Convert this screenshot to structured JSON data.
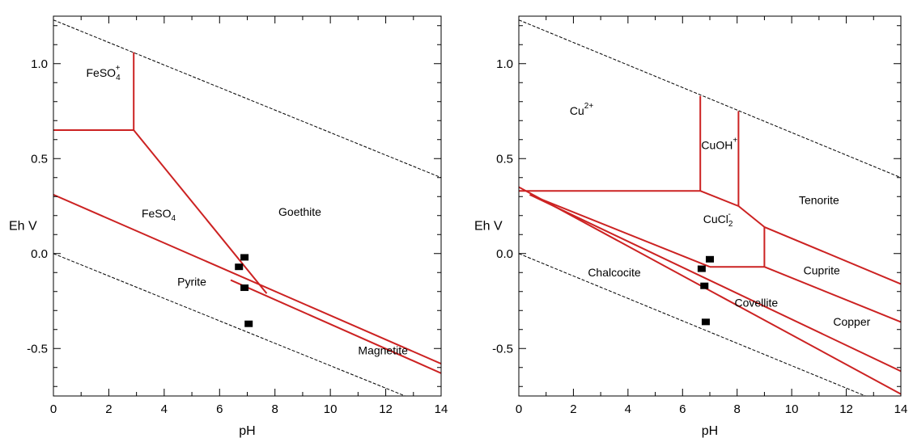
{
  "chart_data": [
    {
      "type": "line",
      "title": "",
      "xlabel": "pH",
      "ylabel": "Eh V",
      "xlim": [
        0,
        14
      ],
      "ylim": [
        -0.75,
        1.25
      ],
      "xticks": [
        0,
        2,
        4,
        6,
        8,
        10,
        12,
        14
      ],
      "xtick_labels": [
        "0",
        "2",
        "4",
        "6",
        "8",
        "10",
        "12",
        "14"
      ],
      "yticks": [
        -0.5,
        0.0,
        0.5,
        1.0
      ],
      "ytick_labels": [
        "-0.5",
        "0.0",
        "0.5",
        "1.0"
      ],
      "grid": false,
      "boundary_color": "#cc2222",
      "series": [
        {
          "style": "dashed",
          "points": [
            [
              0,
              1.23
            ],
            [
              14,
              0.4
            ]
          ]
        },
        {
          "style": "dashed",
          "points": [
            [
              0,
              0.0
            ],
            [
              12.7,
              -0.75
            ]
          ]
        },
        {
          "style": "solid",
          "points": [
            [
              0,
              0.65
            ],
            [
              2.9,
              0.65
            ]
          ]
        },
        {
          "style": "solid",
          "points": [
            [
              2.9,
              0.65
            ],
            [
              2.9,
              1.06
            ]
          ]
        },
        {
          "style": "solid",
          "points": [
            [
              2.9,
              0.65
            ],
            [
              7.7,
              -0.21
            ]
          ]
        },
        {
          "style": "solid",
          "points": [
            [
              0,
              0.31
            ],
            [
              14,
              -0.58
            ]
          ]
        },
        {
          "style": "solid",
          "points": [
            [
              6.4,
              -0.14
            ],
            [
              14,
              -0.63
            ]
          ]
        }
      ],
      "markers": [
        [
          6.9,
          -0.02
        ],
        [
          6.7,
          -0.07
        ],
        [
          6.9,
          -0.18
        ],
        [
          7.05,
          -0.37
        ]
      ],
      "annotations": [
        {
          "text": "FeSO",
          "sub": "4",
          "sup": "+",
          "x": 1.8,
          "y": 0.93
        },
        {
          "text": "FeSO",
          "sub": "4",
          "sup": "",
          "x": 3.8,
          "y": 0.19
        },
        {
          "text": "Goethite",
          "x": 8.9,
          "y": 0.2
        },
        {
          "text": "Pyrite",
          "x": 5.0,
          "y": -0.17
        },
        {
          "text": "Magnetite",
          "x": 11.9,
          "y": -0.53
        }
      ]
    },
    {
      "type": "line",
      "title": "",
      "xlabel": "pH",
      "ylabel": "Eh V",
      "xlim": [
        0,
        14
      ],
      "ylim": [
        -0.75,
        1.25
      ],
      "xticks": [
        0,
        2,
        4,
        6,
        8,
        10,
        12,
        14
      ],
      "xtick_labels": [
        "0",
        "2",
        "4",
        "6",
        "8",
        "10",
        "12",
        "14"
      ],
      "yticks": [
        -0.5,
        0.0,
        0.5,
        1.0
      ],
      "ytick_labels": [
        "-0.5",
        "0.0",
        "0.5",
        "1.0"
      ],
      "grid": false,
      "boundary_color": "#cc2222",
      "series": [
        {
          "style": "dashed",
          "points": [
            [
              0,
              1.23
            ],
            [
              14,
              0.4
            ]
          ]
        },
        {
          "style": "dashed",
          "points": [
            [
              0,
              0.0
            ],
            [
              12.7,
              -0.75
            ]
          ]
        },
        {
          "style": "solid",
          "points": [
            [
              0,
              0.33
            ],
            [
              6.65,
              0.33
            ]
          ]
        },
        {
          "style": "solid",
          "points": [
            [
              6.65,
              0.33
            ],
            [
              6.65,
              0.83
            ]
          ]
        },
        {
          "style": "solid",
          "points": [
            [
              8.05,
              0.75
            ],
            [
              8.05,
              0.25
            ]
          ]
        },
        {
          "style": "solid",
          "points": [
            [
              6.65,
              0.33
            ],
            [
              8.05,
              0.25
            ]
          ]
        },
        {
          "style": "solid",
          "points": [
            [
              8.05,
              0.25
            ],
            [
              9.0,
              0.14
            ]
          ]
        },
        {
          "style": "solid",
          "points": [
            [
              9.0,
              0.14
            ],
            [
              9.0,
              -0.07
            ]
          ]
        },
        {
          "style": "solid",
          "points": [
            [
              7.0,
              -0.07
            ],
            [
              9.0,
              -0.07
            ]
          ]
        },
        {
          "style": "solid",
          "points": [
            [
              9.0,
              0.14
            ],
            [
              14,
              -0.16
            ]
          ]
        },
        {
          "style": "solid",
          "points": [
            [
              9.0,
              -0.07
            ],
            [
              14,
              -0.36
            ]
          ]
        },
        {
          "style": "solid",
          "points": [
            [
              0,
              0.35
            ],
            [
              14,
              -0.74
            ]
          ]
        },
        {
          "style": "solid",
          "points": [
            [
              0.4,
              0.31
            ],
            [
              14,
              -0.62
            ]
          ]
        },
        {
          "style": "solid",
          "points": [
            [
              0.4,
              0.31
            ],
            [
              7.0,
              -0.07
            ]
          ]
        }
      ],
      "markers": [
        [
          7.0,
          -0.03
        ],
        [
          6.7,
          -0.08
        ],
        [
          6.8,
          -0.17
        ],
        [
          6.85,
          -0.36
        ]
      ],
      "annotations": [
        {
          "text": "Cu",
          "sub": "",
          "sup": "2+",
          "x": 2.3,
          "y": 0.73
        },
        {
          "text": "CuOH",
          "sub": "",
          "sup": "+",
          "x": 7.35,
          "y": 0.55
        },
        {
          "text": "Tenorite",
          "x": 11.0,
          "y": 0.26
        },
        {
          "text": "CuCl",
          "sub": "2",
          "sup": "-",
          "x": 7.3,
          "y": 0.16
        },
        {
          "text": "Chalcocite",
          "x": 3.5,
          "y": -0.12
        },
        {
          "text": "Cuprite",
          "x": 11.1,
          "y": -0.11
        },
        {
          "text": "Covellite",
          "x": 8.7,
          "y": -0.28
        },
        {
          "text": "Copper",
          "x": 12.2,
          "y": -0.38
        }
      ]
    }
  ]
}
